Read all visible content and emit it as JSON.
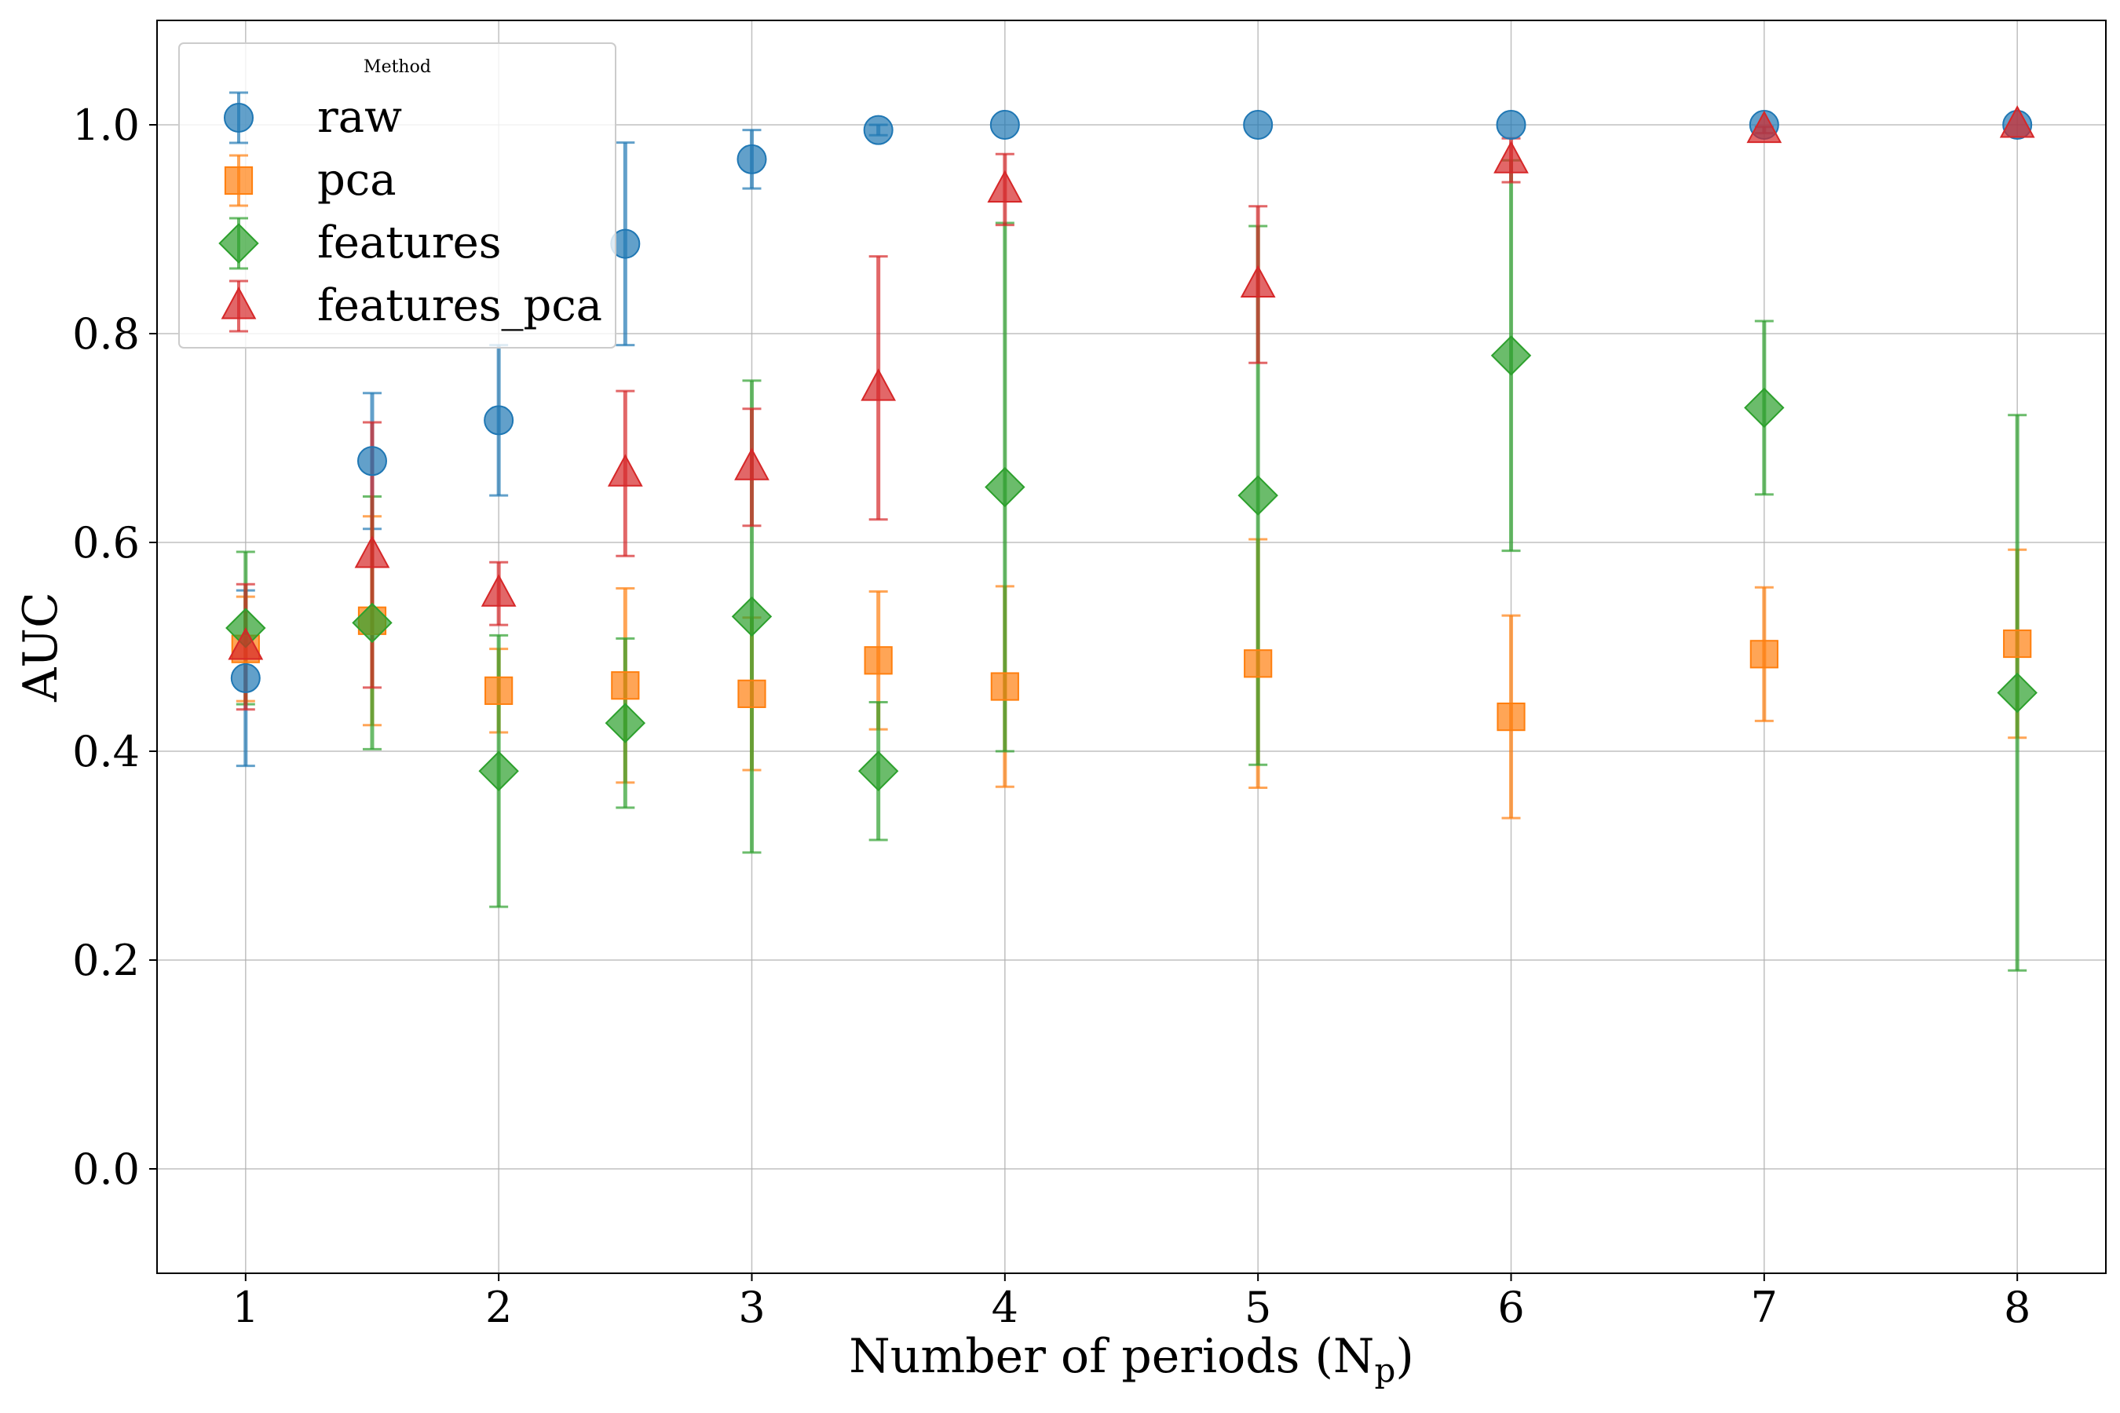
{
  "chart_data": {
    "type": "scatter",
    "xlabel": "Number of periods (N",
    "xlabel_sub": "p",
    "xlabel_tail": ")",
    "ylabel": "AUC",
    "xlim": [
      0.65,
      8.35
    ],
    "ylim": [
      -0.1,
      1.1
    ],
    "xticks": [
      1,
      2,
      3,
      4,
      5,
      6,
      7,
      8
    ],
    "yticks": [
      0.0,
      0.2,
      0.4,
      0.6,
      0.8,
      1.0
    ],
    "ytick_labels": [
      "0.0",
      "0.2",
      "0.4",
      "0.6",
      "0.8",
      "1.0"
    ],
    "grid": true,
    "legend": {
      "title": "Method",
      "position": "top-left"
    },
    "series": [
      {
        "name": "raw",
        "marker": "circle",
        "color": "#1f77b4",
        "x": [
          1,
          1.5,
          2,
          2.5,
          3,
          3.5,
          4,
          5,
          6,
          7,
          8
        ],
        "y": [
          0.47,
          0.678,
          0.717,
          0.886,
          0.967,
          0.995,
          1.0,
          1.0,
          1.0,
          1.0,
          1.0
        ],
        "err": [
          0.084,
          0.065,
          0.072,
          0.097,
          0.028,
          0.005,
          0.0,
          0.0,
          0.0,
          0.0,
          0.0
        ]
      },
      {
        "name": "pca",
        "marker": "square",
        "color": "#ff7f0e",
        "x": [
          1,
          1.5,
          2,
          2.5,
          3,
          3.5,
          4,
          5,
          6,
          7,
          8
        ],
        "y": [
          0.498,
          0.525,
          0.458,
          0.463,
          0.455,
          0.487,
          0.462,
          0.484,
          0.433,
          0.493,
          0.503
        ],
        "err": [
          0.05,
          0.1,
          0.04,
          0.093,
          0.073,
          0.066,
          0.096,
          0.119,
          0.097,
          0.064,
          0.09
        ]
      },
      {
        "name": "features",
        "marker": "diamond",
        "color": "#2ca02c",
        "x": [
          1,
          1.5,
          2,
          2.5,
          3,
          3.5,
          4,
          5,
          6,
          7,
          8
        ],
        "y": [
          0.518,
          0.523,
          0.381,
          0.427,
          0.529,
          0.381,
          0.653,
          0.645,
          0.779,
          0.729,
          0.456
        ],
        "err": [
          0.073,
          0.121,
          0.13,
          0.081,
          0.226,
          0.066,
          0.253,
          0.258,
          0.187,
          0.083,
          0.266
        ]
      },
      {
        "name": "features_pca",
        "marker": "triangle",
        "color": "#d62728",
        "x": [
          1,
          1.5,
          2,
          2.5,
          3,
          3.5,
          4,
          5,
          6,
          7,
          8
        ],
        "y": [
          0.5,
          0.588,
          0.551,
          0.666,
          0.672,
          0.748,
          0.938,
          0.847,
          0.966,
          0.995,
          1.0
        ],
        "err": [
          0.06,
          0.127,
          0.03,
          0.079,
          0.056,
          0.126,
          0.034,
          0.075,
          0.021,
          0.003,
          0.0
        ]
      }
    ]
  }
}
